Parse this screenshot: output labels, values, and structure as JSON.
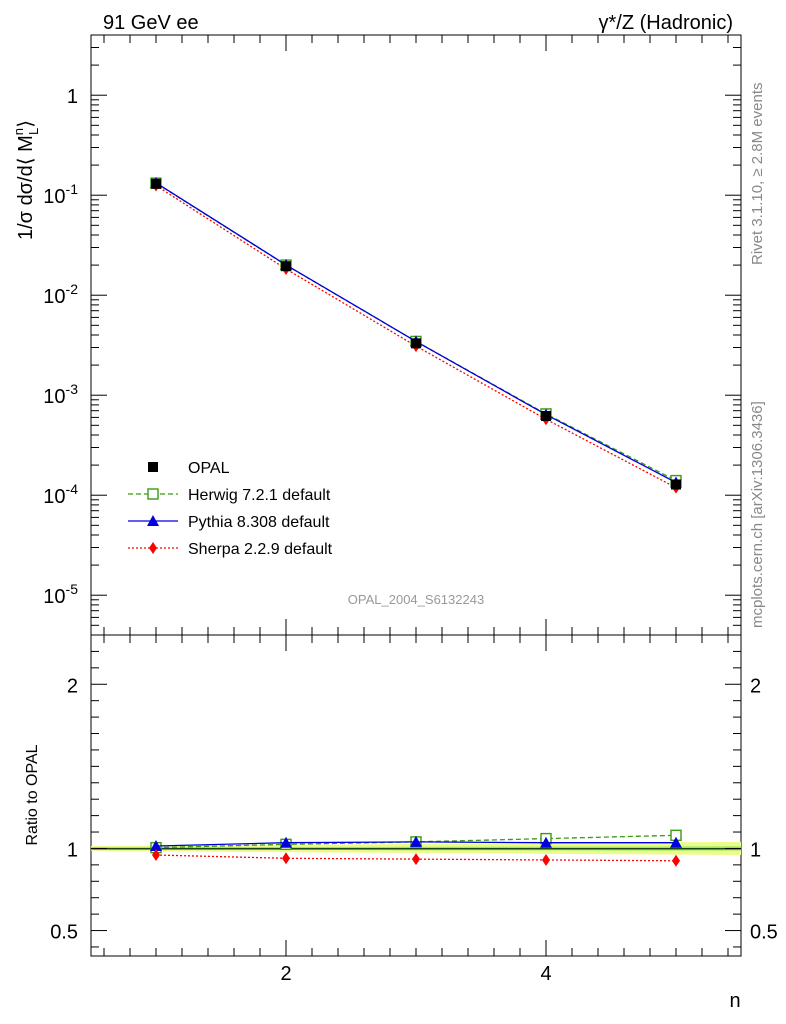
{
  "header": {
    "left_label": "91 GeV ee",
    "right_label": "γ*/Z (Hadronic)"
  },
  "side_labels": {
    "rivet": "Rivet 3.1.10, ≥ 2.8M events",
    "mcplots": "mcplots.cern.ch [arXiv:1306.3436]"
  },
  "analysis_label": "OPAL_2004_S6132243",
  "colors": {
    "data": "#000000",
    "herwig": "#3a9a12",
    "pythia": "#0000dd",
    "sherpa": "#ff0000",
    "band_outer": "#eefa8c",
    "band_inner": "#b8f070",
    "reference_line": "#2e8b2e"
  },
  "chart_data": [
    {
      "panel": "main",
      "type": "line",
      "ylabel": "1/σ dσ/d⟨ M_L^n ⟩",
      "yscale": "log",
      "xlim": [
        0.5,
        5.5
      ],
      "ylim": [
        4e-06,
        4
      ],
      "ytick_labels": [
        "1",
        "10^-1",
        "10^-2",
        "10^-3",
        "10^-4",
        "10^-5"
      ],
      "x": [
        1,
        2,
        3,
        4,
        5
      ],
      "series": [
        {
          "name": "OPAL",
          "key": "data",
          "marker": "square-filled",
          "values": [
            0.13,
            0.0195,
            0.0033,
            0.00062,
            0.000128
          ]
        },
        {
          "name": "Herwig 7.2.1 default",
          "key": "herwig",
          "marker": "square-open",
          "line": "dashed",
          "values": [
            0.132,
            0.02,
            0.00345,
            0.00065,
            0.00014
          ]
        },
        {
          "name": "Pythia 8.308 default",
          "key": "pythia",
          "marker": "triangle",
          "line": "solid",
          "values": [
            0.133,
            0.0201,
            0.00345,
            0.00064,
            0.000134
          ]
        },
        {
          "name": "Sherpa 2.2.9 default",
          "key": "sherpa",
          "marker": "diamond",
          "line": "dotted",
          "values": [
            0.125,
            0.0183,
            0.0031,
            0.000575,
            0.000119
          ]
        }
      ],
      "legend_position": "bottom-left"
    },
    {
      "panel": "ratio",
      "type": "line",
      "ylabel": "Ratio to OPAL",
      "xlabel": "n",
      "xlim": [
        0.5,
        5.5
      ],
      "ylim": [
        0.345,
        2.3
      ],
      "ytick_labels": [
        "0.5",
        "1",
        "2"
      ],
      "xtick_labels": [
        "2",
        "4"
      ],
      "x": [
        1,
        2,
        3,
        4,
        5
      ],
      "series": [
        {
          "name": "Herwig 7.2.1 default",
          "key": "herwig",
          "values": [
            1.005,
            1.025,
            1.04,
            1.06,
            1.08
          ]
        },
        {
          "name": "Pythia 8.308 default",
          "key": "pythia",
          "values": [
            1.015,
            1.035,
            1.04,
            1.035,
            1.035
          ]
        },
        {
          "name": "Sherpa 2.2.9 default",
          "key": "sherpa",
          "values": [
            0.96,
            0.94,
            0.935,
            0.93,
            0.925
          ]
        }
      ],
      "band": {
        "x": [
          0.5,
          5.5
        ],
        "outer": [
          0.985,
          1.015,
          0.96,
          1.04
        ],
        "inner": [
          0.993,
          1.007,
          0.985,
          1.015
        ]
      }
    }
  ]
}
